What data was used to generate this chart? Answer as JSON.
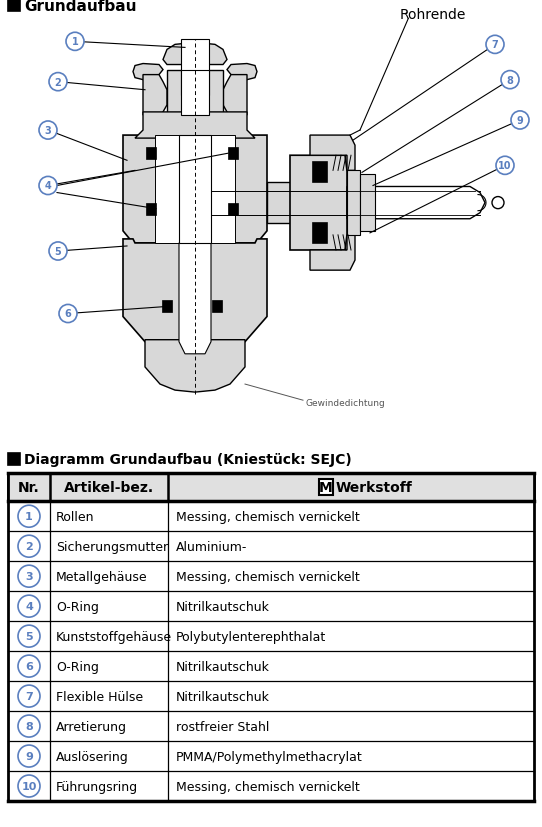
{
  "title_section": "Grundaufbau",
  "table_title": "Diagramm Grundaufbau (Kniestück: SEJC)",
  "rows": [
    [
      "1",
      "Rollen",
      "Messing, chemisch vernickelt"
    ],
    [
      "2",
      "Sicherungsmutter",
      "Aluminium-"
    ],
    [
      "3",
      "Metallgehäuse",
      "Messing, chemisch vernickelt"
    ],
    [
      "4",
      "O-Ring",
      "Nitrilkautschuk"
    ],
    [
      "5",
      "Kunststoffgehäuse",
      "Polybutylenterephthalat"
    ],
    [
      "6",
      "O-Ring",
      "Nitrilkautschuk"
    ],
    [
      "7",
      "Flexible Hülse",
      "Nitrilkautschuk"
    ],
    [
      "8",
      "Arretierung",
      "rostfreier Stahl"
    ],
    [
      "9",
      "Auslösering",
      "PMMA/Polymethylmethacrylat"
    ],
    [
      "10",
      "Führungsring",
      "Messing, chemisch vernickelt"
    ]
  ],
  "rohrende_label": "Rohrende",
  "gewindedichtung_label": "Gewindedichtung",
  "bg_color": "#ffffff",
  "gray_fill": "#d8d8d8",
  "white": "#ffffff",
  "black": "#000000",
  "callout_color": "#5a7fbf"
}
